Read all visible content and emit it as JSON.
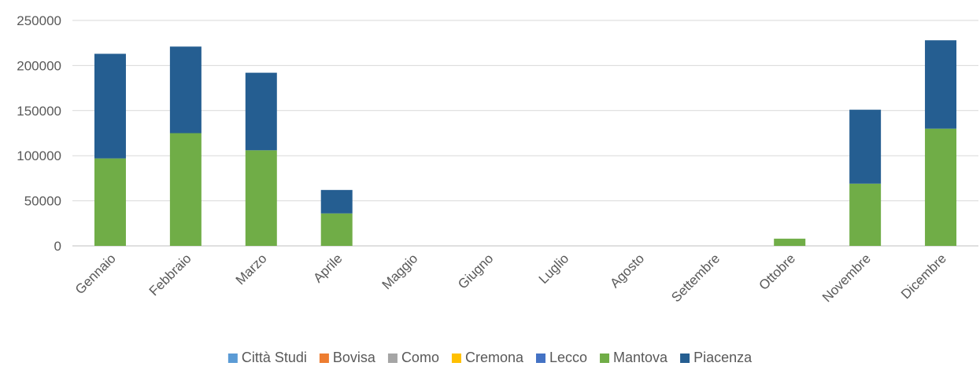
{
  "chart_data": {
    "type": "bar",
    "stacked": true,
    "categories": [
      "Gennaio",
      "Febbraio",
      "Marzo",
      "Aprile",
      "Maggio",
      "Giugno",
      "Luglio",
      "Agosto",
      "Settembre",
      "Ottobre",
      "Novembre",
      "Dicembre"
    ],
    "series": [
      {
        "name": "Città Studi",
        "color": "#5B9BD5",
        "values": [
          0,
          0,
          0,
          0,
          0,
          0,
          0,
          0,
          0,
          0,
          0,
          0
        ]
      },
      {
        "name": "Bovisa",
        "color": "#ED7D31",
        "values": [
          0,
          0,
          0,
          0,
          0,
          0,
          0,
          0,
          0,
          0,
          0,
          0
        ]
      },
      {
        "name": "Como",
        "color": "#A5A5A5",
        "values": [
          0,
          0,
          0,
          0,
          0,
          0,
          0,
          0,
          0,
          0,
          0,
          0
        ]
      },
      {
        "name": "Cremona",
        "color": "#FFC000",
        "values": [
          0,
          0,
          0,
          0,
          0,
          0,
          0,
          0,
          0,
          0,
          0,
          0
        ]
      },
      {
        "name": "Lecco",
        "color": "#4472C4",
        "values": [
          0,
          0,
          0,
          0,
          0,
          0,
          0,
          0,
          0,
          0,
          0,
          0
        ]
      },
      {
        "name": "Mantova",
        "color": "#70AD47",
        "values": [
          97000,
          125000,
          106000,
          36000,
          0,
          0,
          0,
          0,
          0,
          8000,
          69000,
          130000
        ]
      },
      {
        "name": "Piacenza",
        "color": "#255E91",
        "values": [
          116000,
          96000,
          86000,
          26000,
          0,
          0,
          0,
          0,
          0,
          0,
          82000,
          98000
        ]
      }
    ],
    "yticks": [
      "0",
      "50000",
      "100000",
      "150000",
      "200000",
      "250000"
    ],
    "ylim": [
      0,
      250000
    ],
    "title": "",
    "xlabel": "",
    "ylabel": "",
    "grid": true,
    "legend_position": "bottom"
  }
}
